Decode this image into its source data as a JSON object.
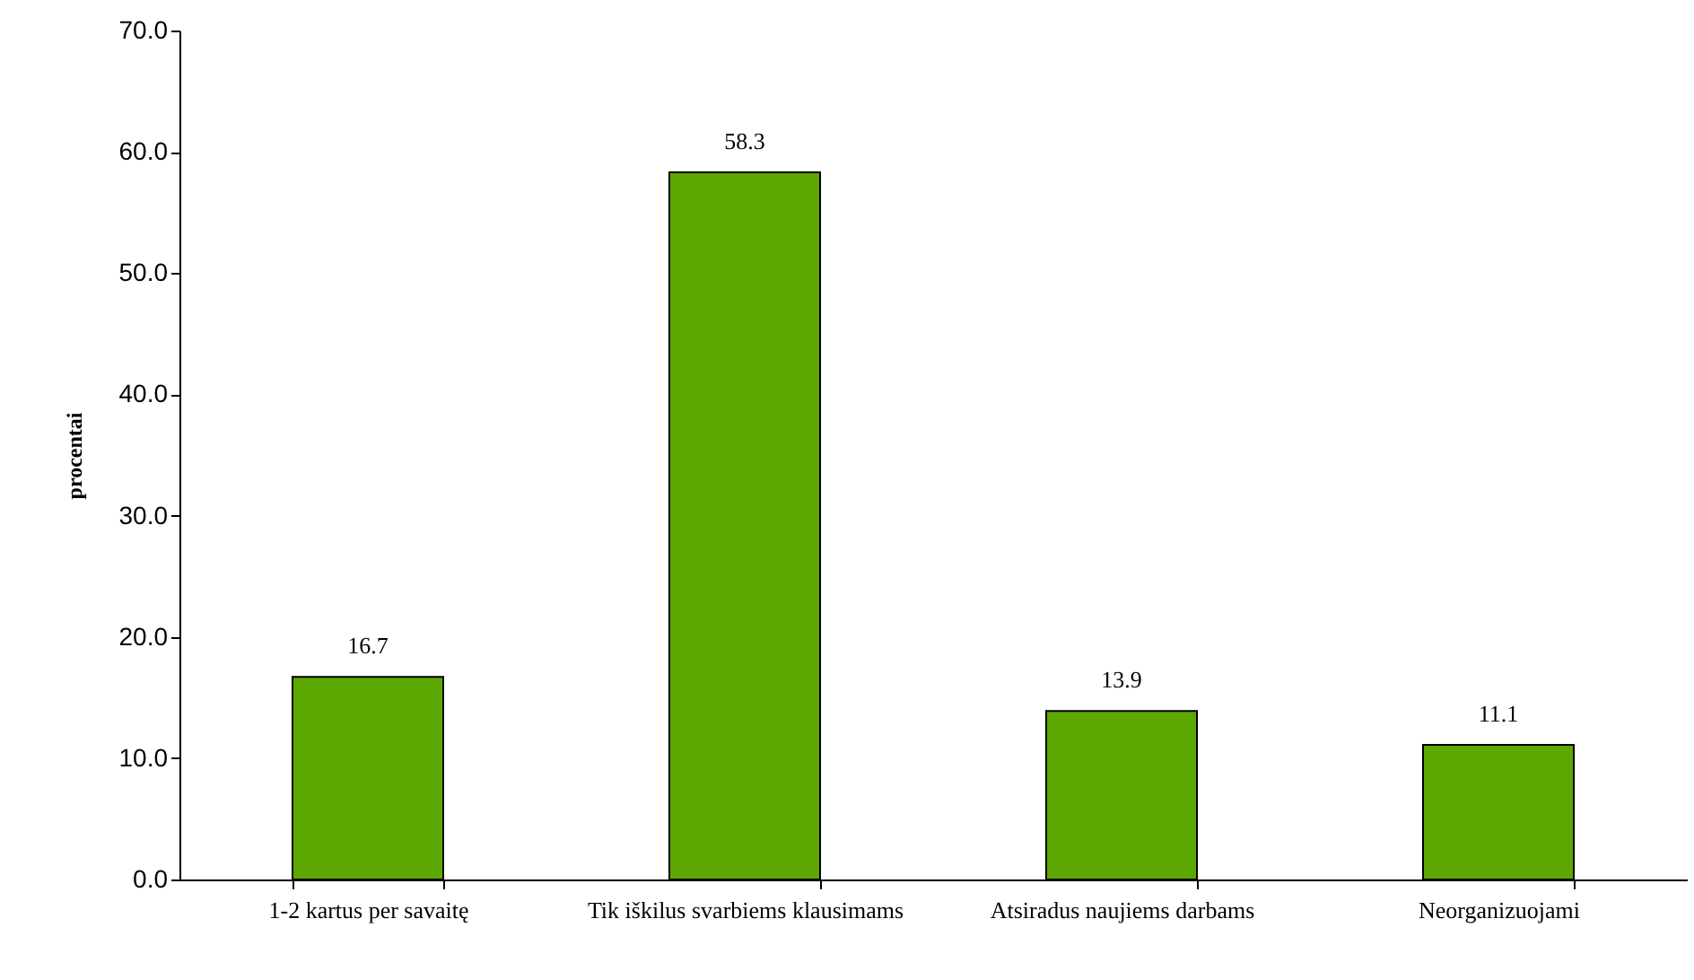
{
  "chart_data": {
    "type": "bar",
    "ylabel": "procentai",
    "categories": [
      "1-2 kartus per savaitę",
      "Tik iškilus svarbiems klausimams",
      "Atsiradus naujiems darbams",
      "Neorganizuojami"
    ],
    "values": [
      16.7,
      58.3,
      13.9,
      11.1
    ],
    "color": "#5ca800",
    "ylim": [
      0,
      70
    ],
    "yticks": [
      {
        "value": 0,
        "label": "0.0"
      },
      {
        "value": 10,
        "label": "10.0"
      },
      {
        "value": 20,
        "label": "20.0"
      },
      {
        "value": 30,
        "label": "30.0"
      },
      {
        "value": 40,
        "label": "40.0"
      },
      {
        "value": 50,
        "label": "50.0"
      },
      {
        "value": 60,
        "label": "60.0"
      },
      {
        "value": 70,
        "label": "70.0"
      }
    ],
    "grid": false,
    "data_labels": true
  }
}
